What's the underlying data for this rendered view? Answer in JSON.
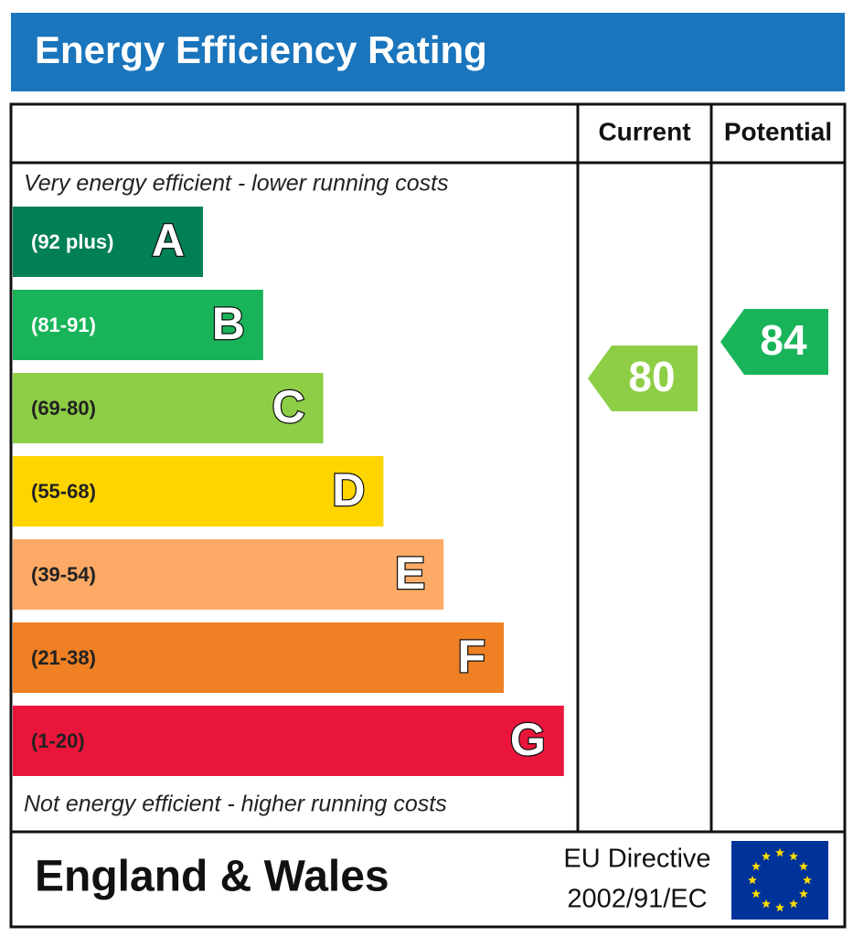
{
  "header": {
    "title": "Energy Efficiency Rating"
  },
  "columns": [
    "Current",
    "Potential"
  ],
  "top_note": "Very energy efficient - lower running costs",
  "bottom_note": "Not energy efficient - higher running costs",
  "bands": [
    {
      "range": "(92 plus)",
      "letter": "A",
      "color": "#008054"
    },
    {
      "range": "(81-91)",
      "letter": "B",
      "color": "#19b459"
    },
    {
      "range": "(69-80)",
      "letter": "C",
      "color": "#8dce46"
    },
    {
      "range": "(55-68)",
      "letter": "D",
      "color": "#ffd500"
    },
    {
      "range": "(39-54)",
      "letter": "E",
      "color": "#fcaa65"
    },
    {
      "range": "(21-38)",
      "letter": "F",
      "color": "#ef8023"
    },
    {
      "range": "(1-20)",
      "letter": "G",
      "color": "#e9153b"
    }
  ],
  "ratings": {
    "current": 80,
    "potential": 84
  },
  "footer": {
    "region": "England & Wales",
    "directive": [
      "EU Directive",
      "2002/91/EC"
    ]
  }
}
